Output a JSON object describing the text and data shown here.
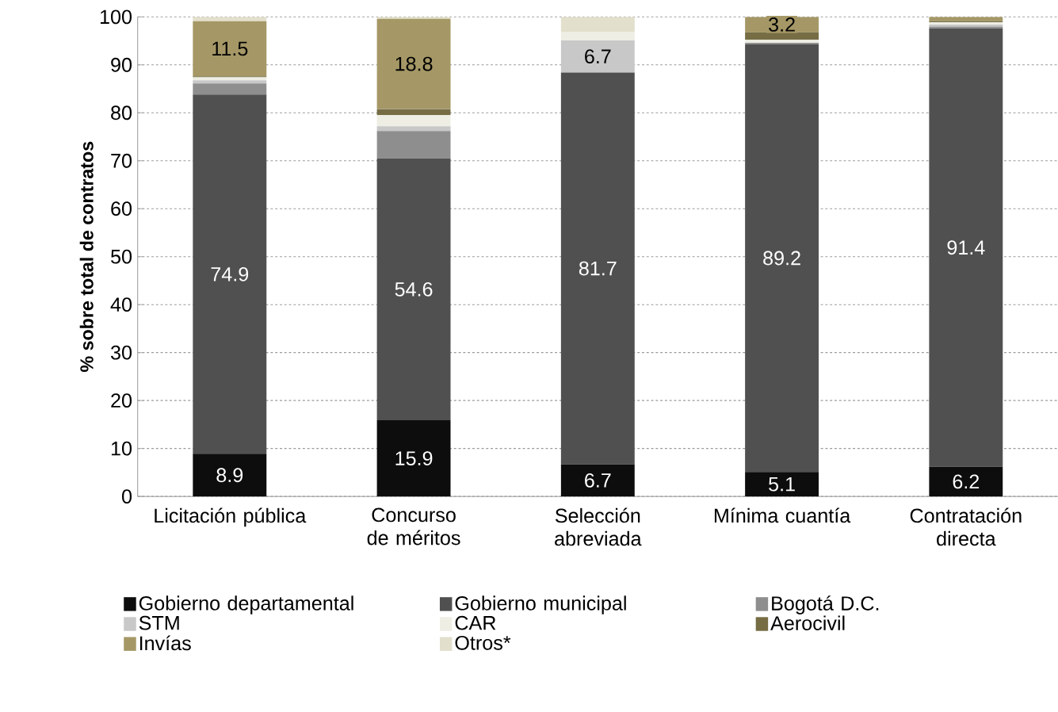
{
  "chart_data": {
    "type": "bar",
    "stacked": true,
    "ylabel": "% sobre total de contratos",
    "categories": [
      "Licitación pública",
      "Concurso de méritos",
      "Selección abreviada",
      "Mínima cuantía",
      "Contratación directa"
    ],
    "ylim": [
      0,
      100
    ],
    "yticks": [
      0,
      10,
      20,
      30,
      40,
      50,
      60,
      70,
      80,
      90,
      100
    ],
    "grid": "y",
    "legend": "bottom",
    "series": [
      {
        "name": "Gobierno departamental",
        "color": "#0d0d0d",
        "values": [
          8.9,
          15.9,
          6.7,
          5.1,
          6.2
        ],
        "value_labels": [
          "8.9",
          "15.9",
          "6.7",
          "5.1",
          "6.2"
        ]
      },
      {
        "name": "Gobierno municipal",
        "color": "#505050",
        "values": [
          74.9,
          54.6,
          81.7,
          89.2,
          91.4
        ],
        "value_labels": [
          "74.9",
          "54.6",
          "81.7",
          "89.2",
          "91.4"
        ]
      },
      {
        "name": "Bogotá D.C.",
        "color": "#8e8e8e",
        "values": [
          2.3,
          5.7,
          0,
          0.3,
          0.4
        ]
      },
      {
        "name": "STM",
        "color": "#c8c8c8",
        "values": [
          0.7,
          1.0,
          6.7,
          0,
          0.4
        ],
        "value_labels": [
          null,
          null,
          "6.7",
          null,
          null
        ]
      },
      {
        "name": "CAR",
        "color": "#eeeee4",
        "values": [
          0.6,
          2.3,
          1.7,
          0.6,
          0.5
        ]
      },
      {
        "name": "Aerocivil",
        "color": "#766d45",
        "values": [
          0.2,
          1.3,
          0,
          1.6,
          0.2
        ]
      },
      {
        "name": "Invías",
        "color": "#a59866",
        "values": [
          11.5,
          18.8,
          0,
          3.2,
          0.9
        ],
        "value_labels": [
          "11.5",
          "18.8",
          null,
          "3.2",
          null
        ]
      },
      {
        "name": "Otros*",
        "color": "#e2dfcc",
        "values": [
          0.9,
          0.4,
          3.2,
          0,
          0
        ]
      }
    ]
  }
}
